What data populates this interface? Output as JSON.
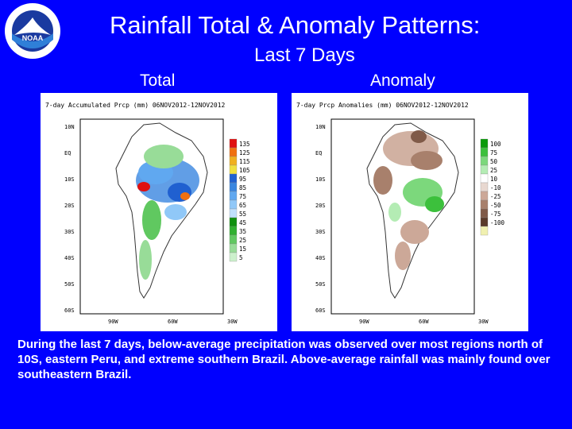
{
  "header": {
    "logo_text": "NOAA",
    "logo_ring_text": "NATIONAL OCEANIC AND ATMOSPHERIC ADMINISTRATION · U.S. DEPARTMENT OF COMMERCE",
    "title_line1": "Rainfall Total & Anomaly Patterns:",
    "title_line2": "Last 7 Days"
  },
  "panels": {
    "total": {
      "label": "Total",
      "map_title": "7-day Accumulated Prcp (mm) 06NOV2012-12NOV2012",
      "lat_labels": [
        "10N",
        "EQ",
        "10S",
        "20S",
        "30S",
        "40S",
        "50S",
        "60S"
      ],
      "lon_labels": [
        "90W",
        "60W",
        "30W"
      ],
      "legend": [
        "135",
        "125",
        "115",
        "105",
        "95",
        "85",
        "75",
        "65",
        "55",
        "45",
        "35",
        "25",
        "15",
        "5"
      ],
      "legend_colors": [
        "#e01010",
        "#f07010",
        "#f0b020",
        "#f0e040",
        "#2060d0",
        "#3a86e0",
        "#60a8f0",
        "#90c8f8",
        "#c0e0fc",
        "#109010",
        "#30b030",
        "#60c860",
        "#98dc98",
        "#ccf0cc"
      ]
    },
    "anomaly": {
      "label": "Anomaly",
      "map_title": "7-day Prcp Anomalies (mm) 06NOV2012-12NOV2012",
      "lat_labels": [
        "10N",
        "EQ",
        "10S",
        "20S",
        "30S",
        "40S",
        "50S",
        "60S"
      ],
      "lon_labels": [
        "90W",
        "60W",
        "30W"
      ],
      "legend": [
        "100",
        "75",
        "50",
        "25",
        "10",
        "-10",
        "-25",
        "-50",
        "-75",
        "-100"
      ],
      "legend_colors": [
        "#0a9a0a",
        "#3cc03c",
        "#7cd87c",
        "#b4ecb4",
        "#ffffff",
        "#e8d8d0",
        "#cca898",
        "#a8806c",
        "#805a48",
        "#5a3a2a",
        "#f0f0b0"
      ]
    }
  },
  "caption": "During the last 7 days, below-average precipitation was observed over  most regions north of 10S, eastern Peru, and extreme southern Brazil. Above-average rainfall was mainly found over southeastern Brazil."
}
